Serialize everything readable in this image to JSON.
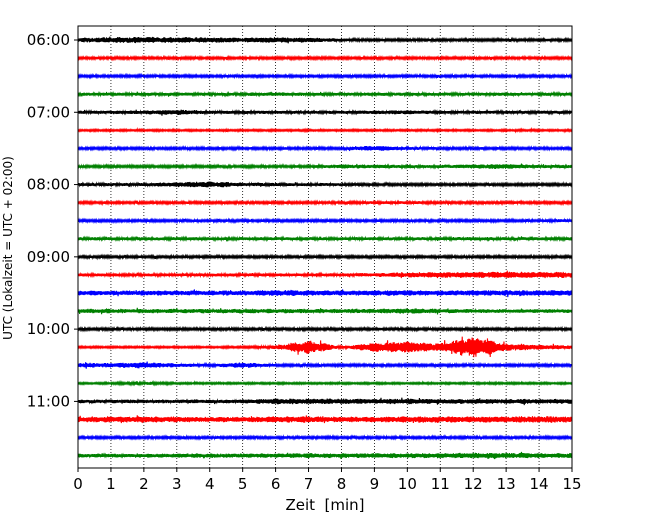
{
  "chart_data": {
    "type": "line",
    "title": "",
    "xlabel": "Zeit  [min]",
    "ylabel": "UTC (Lokalzeit = UTC + 02:00)",
    "xlim": [
      0,
      15
    ],
    "x_ticks": [
      "0",
      "1",
      "2",
      "3",
      "4",
      "5",
      "6",
      "7",
      "8",
      "9",
      "10",
      "11",
      "12",
      "13",
      "14",
      "15"
    ],
    "y_ticks": [
      "06:00",
      "07:00",
      "08:00",
      "09:00",
      "10:00",
      "11:00"
    ],
    "grid": "vertical dotted at each minute",
    "trace_interval_min": 15,
    "colors": [
      "#000000",
      "#ff0000",
      "#0000ff",
      "#008000"
    ],
    "traces": [
      {
        "start": "06:00",
        "color": "#000000",
        "amplitude": [
          0.7,
          0.9,
          1.0,
          0.9,
          0.9,
          0.8,
          0.9,
          0.8,
          0.5,
          0.4,
          0.4,
          0.4,
          0.4,
          0.4,
          0.4,
          0.4
        ]
      },
      {
        "start": "06:15",
        "color": "#ff0000",
        "amplitude": [
          0.4,
          0.4,
          0.4,
          0.4,
          0.4,
          0.4,
          0.4,
          0.4,
          0.4,
          0.4,
          0.4,
          0.4,
          0.4,
          0.4,
          0.4,
          0.4
        ]
      },
      {
        "start": "06:30",
        "color": "#0000ff",
        "amplitude": [
          0.4,
          0.4,
          0.4,
          0.4,
          0.4,
          0.4,
          0.4,
          0.4,
          0.4,
          0.4,
          0.4,
          0.4,
          0.4,
          0.4,
          0.4,
          0.4
        ]
      },
      {
        "start": "06:45",
        "color": "#008000",
        "amplitude": [
          0.5,
          0.5,
          0.5,
          0.5,
          0.5,
          0.5,
          0.6,
          0.5,
          0.5,
          0.5,
          0.5,
          0.5,
          0.5,
          0.5,
          0.5,
          0.5
        ]
      },
      {
        "start": "07:00",
        "color": "#000000",
        "amplitude": [
          0.5,
          0.6,
          0.6,
          0.9,
          0.5,
          0.5,
          0.5,
          0.5,
          0.5,
          0.6,
          0.7,
          0.5,
          0.5,
          0.5,
          0.5,
          0.5
        ]
      },
      {
        "start": "07:15",
        "color": "#ff0000",
        "amplitude": [
          0.3,
          0.3,
          0.3,
          0.3,
          0.3,
          0.3,
          0.3,
          0.3,
          0.3,
          0.3,
          0.3,
          0.3,
          0.3,
          0.3,
          0.3,
          0.3
        ]
      },
      {
        "start": "07:30",
        "color": "#0000ff",
        "amplitude": [
          0.4,
          0.4,
          0.4,
          0.4,
          0.4,
          0.4,
          0.4,
          0.4,
          0.4,
          0.9,
          0.5,
          0.4,
          0.4,
          0.4,
          0.4,
          0.4
        ]
      },
      {
        "start": "07:45",
        "color": "#008000",
        "amplitude": [
          0.4,
          0.4,
          0.4,
          0.4,
          0.4,
          0.4,
          0.4,
          0.4,
          0.7,
          0.6,
          0.5,
          0.5,
          0.7,
          0.8,
          0.5,
          0.6
        ]
      },
      {
        "start": "08:00",
        "color": "#000000",
        "amplitude": [
          0.5,
          0.5,
          0.5,
          0.8,
          1.0,
          0.6,
          0.5,
          0.5,
          0.5,
          0.4,
          0.4,
          0.4,
          0.4,
          0.4,
          0.4,
          0.4
        ]
      },
      {
        "start": "08:15",
        "color": "#ff0000",
        "amplitude": [
          0.4,
          0.4,
          0.4,
          0.4,
          0.4,
          0.4,
          0.4,
          0.4,
          0.4,
          0.5,
          0.5,
          0.4,
          0.4,
          0.4,
          0.4,
          0.4
        ]
      },
      {
        "start": "08:30",
        "color": "#0000ff",
        "amplitude": [
          0.4,
          0.4,
          0.4,
          0.4,
          0.4,
          0.4,
          0.4,
          0.4,
          0.4,
          0.4,
          0.4,
          0.4,
          0.4,
          0.4,
          0.4,
          0.6
        ]
      },
      {
        "start": "08:45",
        "color": "#008000",
        "amplitude": [
          0.5,
          0.5,
          0.5,
          0.5,
          0.5,
          0.5,
          0.5,
          0.5,
          0.5,
          0.5,
          0.5,
          0.5,
          0.6,
          0.5,
          0.5,
          0.5
        ]
      },
      {
        "start": "09:00",
        "color": "#000000",
        "amplitude": [
          0.4,
          0.4,
          0.4,
          0.4,
          0.4,
          0.4,
          0.4,
          0.4,
          0.4,
          0.4,
          0.4,
          0.4,
          0.4,
          0.4,
          0.4,
          0.4
        ]
      },
      {
        "start": "09:15",
        "color": "#ff0000",
        "amplitude": [
          0.5,
          0.5,
          0.5,
          0.5,
          0.5,
          0.5,
          0.5,
          0.5,
          0.5,
          0.6,
          0.8,
          0.9,
          1.0,
          1.0,
          1.0,
          1.0
        ]
      },
      {
        "start": "09:30",
        "color": "#0000ff",
        "amplitude": [
          0.8,
          0.8,
          0.8,
          0.8,
          0.8,
          0.8,
          1.0,
          0.9,
          0.8,
          0.9,
          0.9,
          0.8,
          0.9,
          0.9,
          0.9,
          0.9
        ]
      },
      {
        "start": "09:45",
        "color": "#008000",
        "amplitude": [
          0.7,
          0.7,
          0.7,
          0.7,
          0.7,
          0.7,
          0.7,
          0.7,
          0.7,
          0.7,
          0.9,
          0.7,
          0.6,
          0.6,
          0.6,
          0.6
        ]
      },
      {
        "start": "10:00",
        "color": "#000000",
        "amplitude": [
          0.4,
          0.4,
          0.4,
          0.4,
          0.4,
          0.4,
          0.4,
          0.4,
          0.4,
          0.4,
          0.4,
          0.4,
          0.4,
          0.4,
          0.4,
          0.4
        ]
      },
      {
        "start": "10:15",
        "color": "#ff0000",
        "amplitude": [
          0.3,
          0.3,
          0.3,
          0.3,
          0.3,
          0.3,
          0.6,
          2.2,
          0.3,
          1.5,
          1.8,
          1.2,
          3.5,
          1.2,
          0.8,
          0.6
        ]
      },
      {
        "start": "10:30",
        "color": "#0000ff",
        "amplitude": [
          0.8,
          0.7,
          1.0,
          0.6,
          0.4,
          0.9,
          0.4,
          0.4,
          0.4,
          0.4,
          0.4,
          0.4,
          0.4,
          0.4,
          0.4,
          0.4
        ]
      },
      {
        "start": "10:45",
        "color": "#008000",
        "amplitude": [
          0.3,
          0.3,
          0.5,
          0.3,
          0.3,
          0.3,
          0.3,
          0.3,
          0.3,
          0.3,
          0.3,
          0.3,
          0.3,
          0.3,
          0.3,
          0.3
        ]
      },
      {
        "start": "11:00",
        "color": "#000000",
        "amplitude": [
          0.6,
          0.6,
          0.6,
          0.6,
          0.6,
          0.6,
          0.9,
          0.9,
          0.9,
          0.8,
          0.9,
          0.8,
          0.8,
          0.8,
          0.8,
          0.8
        ]
      },
      {
        "start": "11:15",
        "color": "#ff0000",
        "amplitude": [
          0.9,
          1.0,
          1.0,
          0.9,
          0.9,
          0.8,
          1.0,
          1.0,
          0.9,
          0.9,
          1.0,
          1.0,
          1.0,
          1.0,
          1.1,
          1.0
        ]
      },
      {
        "start": "11:30",
        "color": "#0000ff",
        "amplitude": [
          0.4,
          0.4,
          0.4,
          0.4,
          0.4,
          0.4,
          0.4,
          0.4,
          0.4,
          0.4,
          0.4,
          0.4,
          0.4,
          0.4,
          0.4,
          0.4
        ]
      },
      {
        "start": "11:45",
        "color": "#008000",
        "amplitude": [
          0.6,
          0.6,
          0.6,
          0.7,
          0.7,
          0.7,
          0.7,
          0.8,
          0.7,
          0.8,
          0.8,
          0.8,
          0.9,
          0.9,
          0.8,
          0.8
        ]
      }
    ]
  }
}
